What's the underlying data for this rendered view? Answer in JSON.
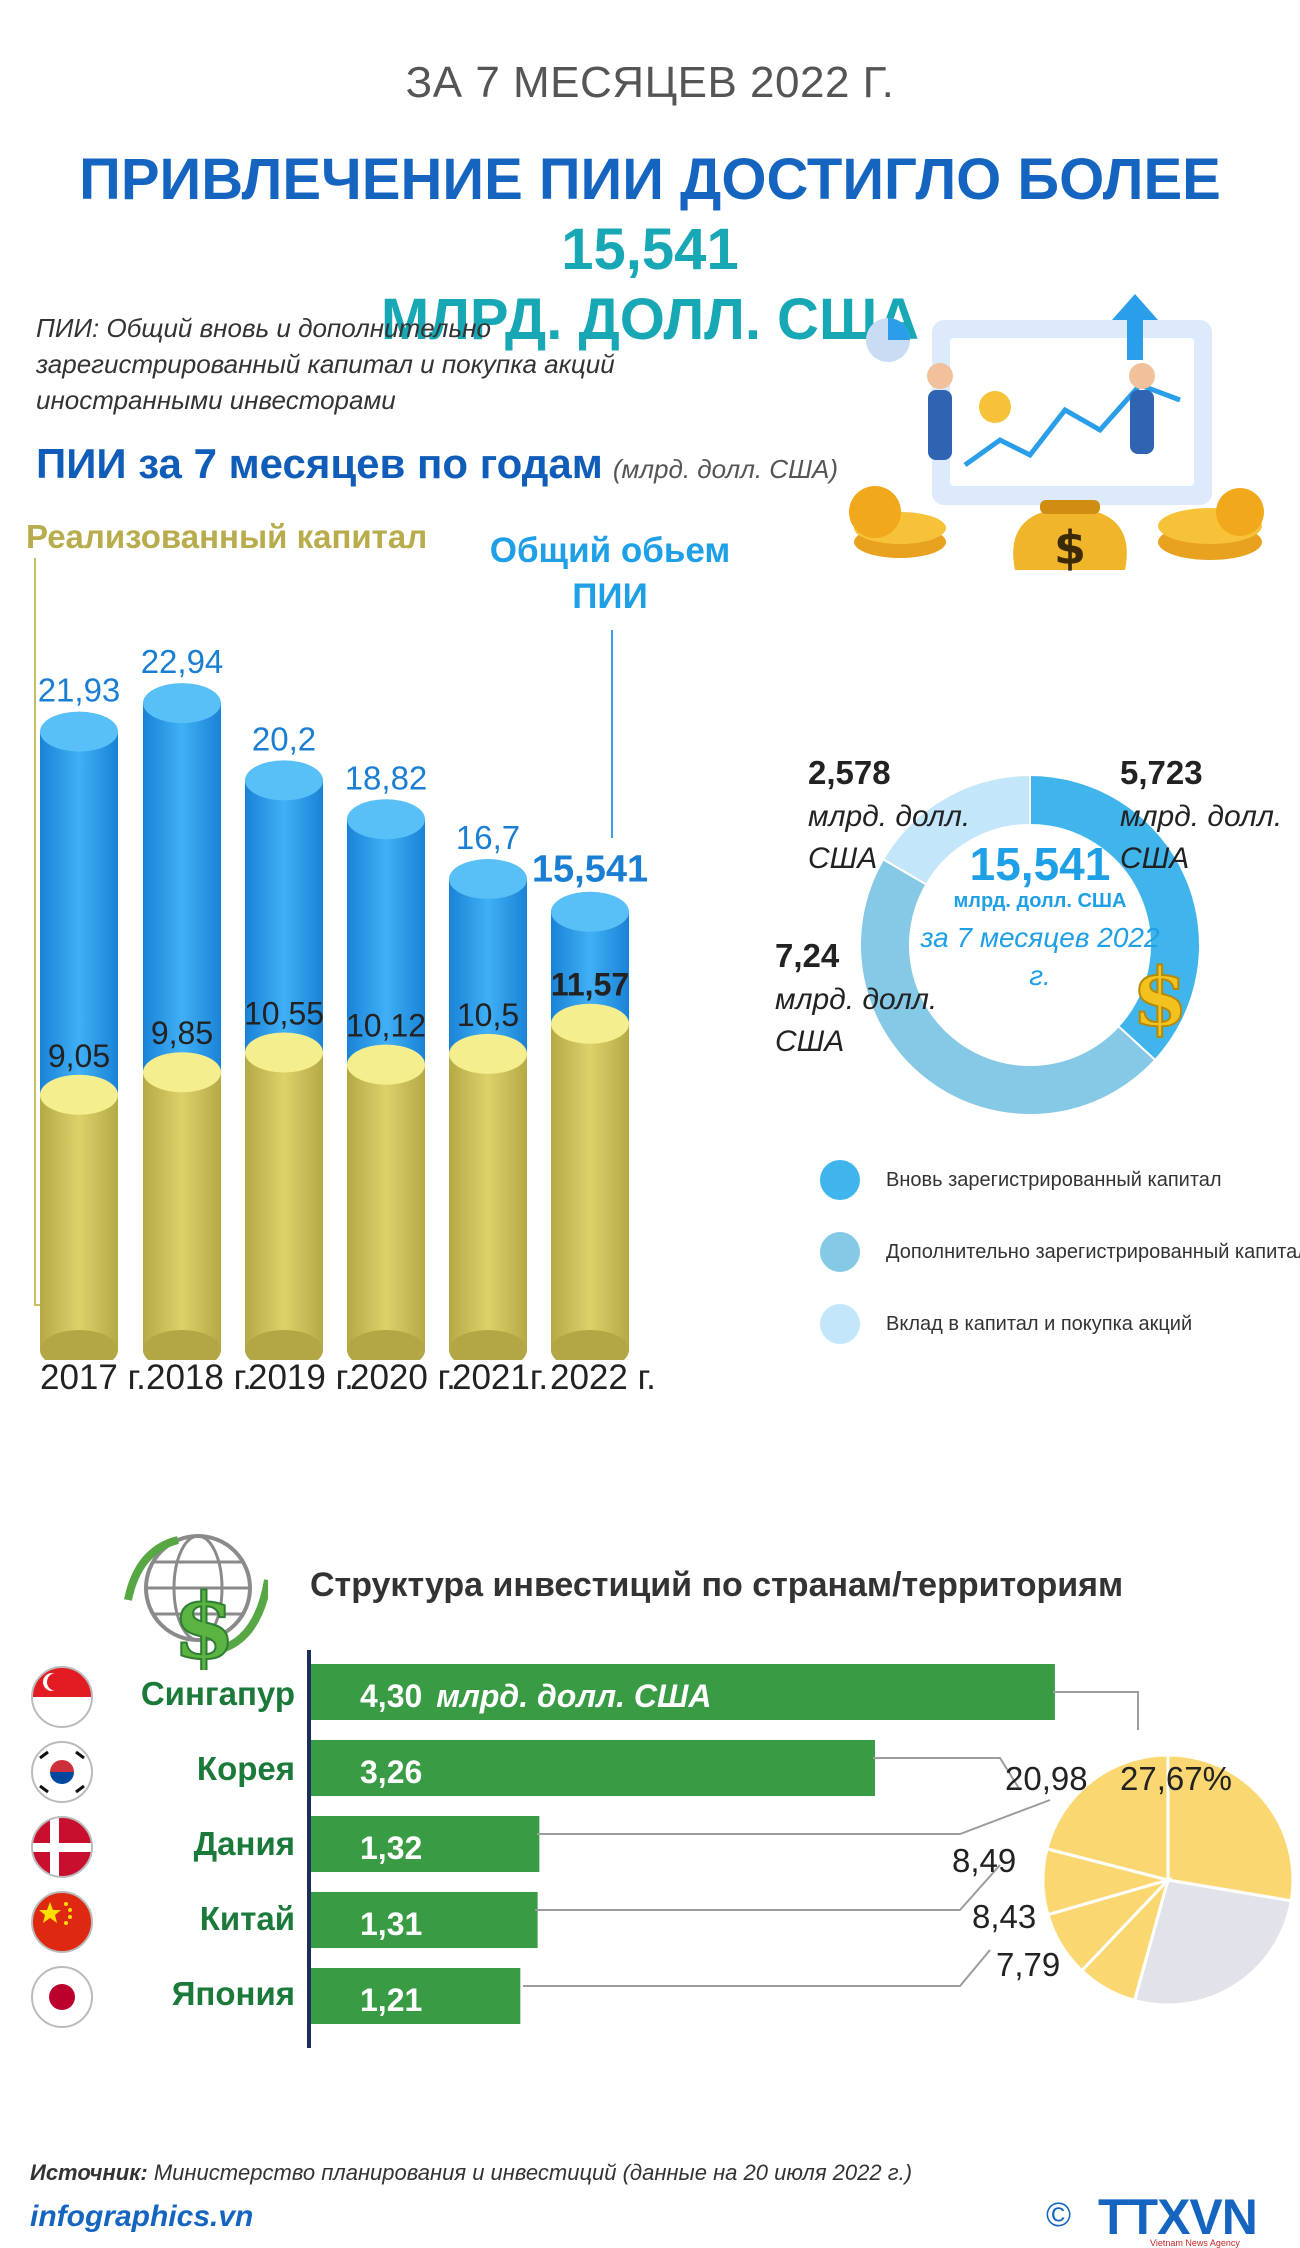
{
  "header": {
    "subtitle": "ЗА 7 МЕСЯЦЕВ 2022 Г.",
    "title_part1": "ПРИВЛЕЧЕНИЕ ПИИ ДОСТИГЛО БОЛЕЕ",
    "title_highlight": "15,541",
    "title_part2": "МЛРД. ДОЛЛ. США",
    "definition": "ПИИ: Общий вновь и дополнительно зарегистрированный капитал и покупка акций иностранными инвесторами"
  },
  "section1": {
    "title": "ПИИ за 7 месяцев по годам",
    "unit": "(млрд. долл. США)",
    "label_realized": "Реализованный капитал",
    "label_total": "Общий обьем ПИИ"
  },
  "chart_data": [
    {
      "type": "bar",
      "categories": [
        "2017 г.",
        "2018 г.",
        "2019 г.",
        "2020 г.",
        "2021г.",
        "2022 г."
      ],
      "series": [
        {
          "name": "Общий обьем ПИИ",
          "values": [
            21.93,
            22.94,
            20.2,
            18.82,
            16.7,
            15.541
          ],
          "labels": [
            "21,93",
            "22,94",
            "20,2",
            "18,82",
            "16,7",
            "15,541"
          ]
        },
        {
          "name": "Реализованный капитал",
          "values": [
            9.05,
            9.85,
            10.55,
            10.12,
            10.5,
            11.57
          ],
          "labels": [
            "9,05",
            "9,85",
            "10,55",
            "10,12",
            "10,5",
            "11,57"
          ]
        }
      ],
      "title": "ПИИ за 7 месяцев по годам",
      "unit": "(млрд. долл. США)"
    },
    {
      "type": "pie",
      "categories": [
        "Вновь зарегистрированный капитал",
        "Дополнительно зарегистрированный капитал",
        "Вклад в капитал и покупка акций"
      ],
      "values": [
        5.723,
        7.24,
        2.578
      ],
      "labels": [
        "5,723",
        "7,24",
        "2,578"
      ],
      "unit_label": "млрд. долл. США",
      "center_value": "15,541",
      "center_unit": "млрд. долл. США",
      "center_period": "за 7 месяцев 2022 г.",
      "legend_placement": "bottom"
    },
    {
      "type": "bar",
      "title": "Структура инвестиций по странам/территориям",
      "categories": [
        "Сингапур",
        "Корея",
        "Дания",
        "Китай",
        "Япония"
      ],
      "values": [
        4.3,
        3.26,
        1.32,
        1.31,
        1.21
      ],
      "labels": [
        "4,30",
        "3,26",
        "1,32",
        "1,31",
        "1,21"
      ],
      "first_unit": "млрд. долл. США"
    },
    {
      "type": "pie",
      "values": [
        27.67,
        20.98,
        8.49,
        8.43,
        7.79
      ],
      "labels": [
        "27,67%",
        "20,98",
        "8,49",
        "8,43",
        "7,79"
      ]
    }
  ],
  "colors": {
    "title_blue": "#1565c0",
    "accent_teal": "#17a7b5",
    "bar_blue": "#2a9ee8",
    "bar_yellow": "#cfc25a",
    "donut_new": "#3fb5ec",
    "donut_additional": "#86c9e6",
    "donut_contribution": "#c3e6fb",
    "country_green": "#3a9b45",
    "pie_yellow": "#fbd772",
    "pie_grey": "#e2e2ea"
  },
  "footer": {
    "source_label": "Источник:",
    "source_text": "Министерство планирования и инвестиций (данные на 20 июля 2022 г.)",
    "site": "infographics.vn",
    "copyright": "©",
    "brand": "TTXVN",
    "brand_sub": "Vietnam News Agency"
  }
}
